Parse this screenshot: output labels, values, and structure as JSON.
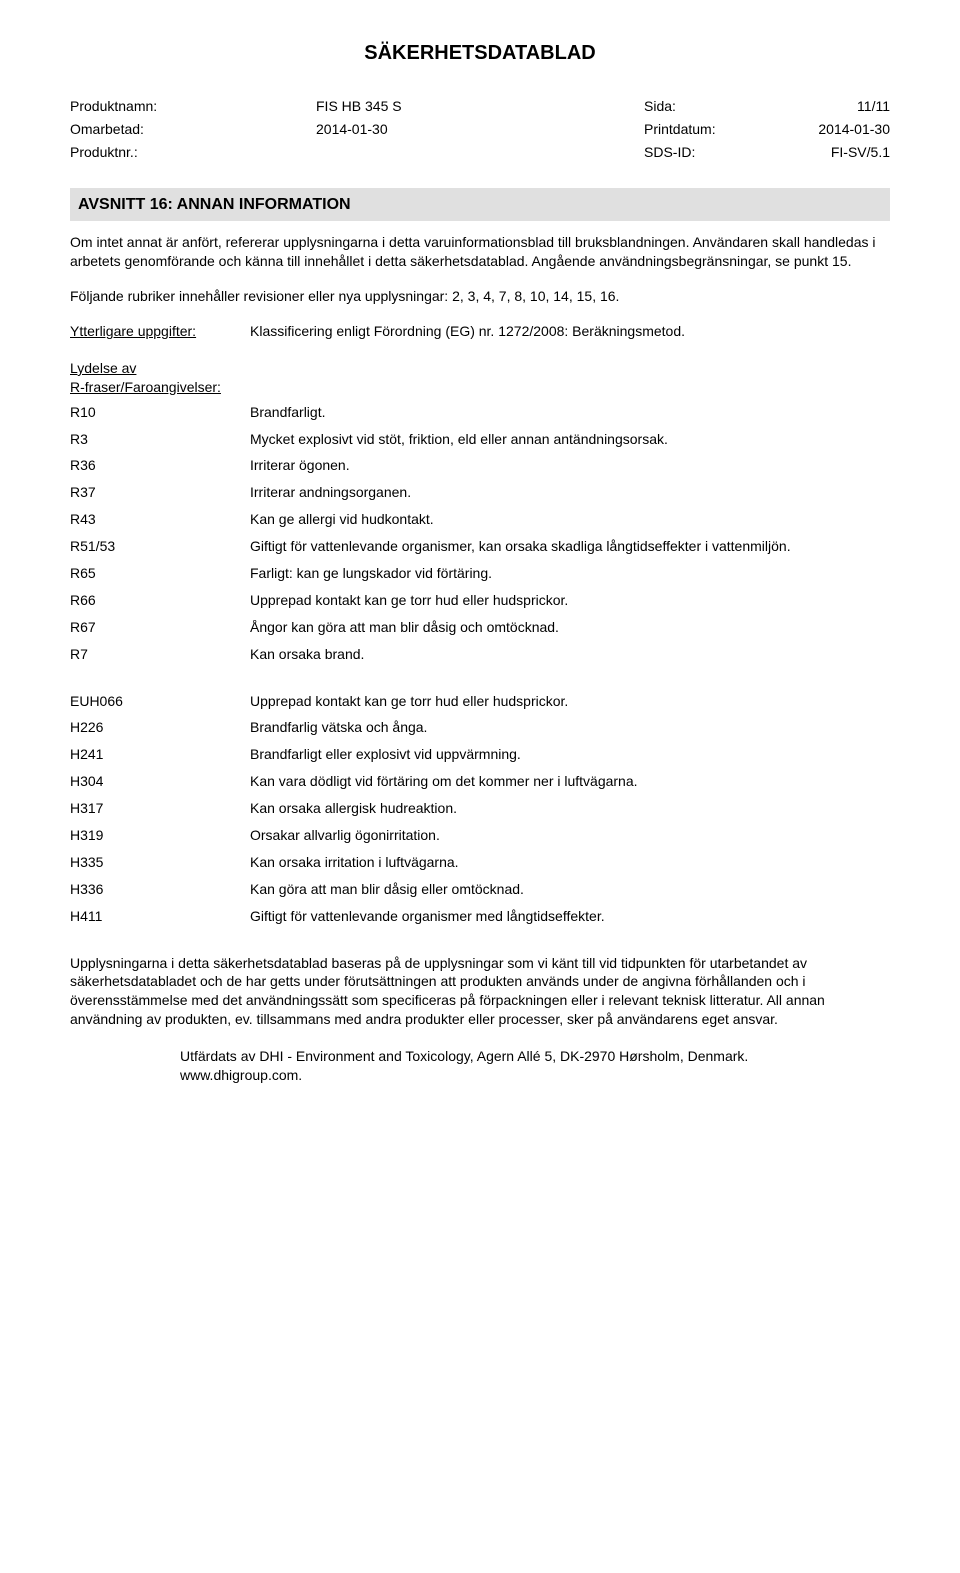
{
  "doc_title": "SÄKERHETSDATABLAD",
  "meta": {
    "product_name_label": "Produktnamn:",
    "product_name_value": "FIS HB 345 S",
    "page_label": "Sida:",
    "page_value": "11/11",
    "revised_label": "Omarbetad:",
    "revised_value": "2014-01-30",
    "printdate_label": "Printdatum:",
    "printdate_value": "2014-01-30",
    "productnr_label": "Produktnr.:",
    "productnr_value": "",
    "sdsid_label": "SDS-ID:",
    "sdsid_value": "FI-SV/5.1"
  },
  "section16": {
    "header": "AVSNITT 16: ANNAN INFORMATION",
    "intro": "Om intet annat är anfört, refererar upplysningarna i detta varuinformationsblad till bruksblandningen. Användaren skall handledas i arbetets genomförande och känna till innehållet i detta säkerhetsdatablad. Angående användningsbegränsningar, se punkt 15.",
    "revisions": "Följande rubriker innehåller revisioner eller nya upplysningar: 2, 3, 4, 7, 8,  10, 14, 15, 16.",
    "additional_label": "Ytterligare uppgifter:",
    "additional_value": "Klassificering enligt Förordning (EG) nr. 1272/2008: Beräkningsmetod.",
    "r_heading_line1": "Lydelse av",
    "r_heading_line2": "R-fraser/Faroangivelser:",
    "r_phrases": [
      {
        "code": "R10",
        "text": "Brandfarligt."
      },
      {
        "code": "R3",
        "text": "Mycket explosivt vid stöt, friktion, eld eller annan antändningsorsak."
      },
      {
        "code": "R36",
        "text": "Irriterar ögonen."
      },
      {
        "code": "R37",
        "text": "Irriterar andningsorganen."
      },
      {
        "code": "R43",
        "text": "Kan ge allergi vid hudkontakt."
      },
      {
        "code": "R51/53",
        "text": "Giftigt för vattenlevande organismer, kan orsaka skadliga långtidseffekter i vattenmiljön."
      },
      {
        "code": "R65",
        "text": "Farligt: kan ge lungskador vid förtäring."
      },
      {
        "code": "R66",
        "text": "Upprepad kontakt kan ge torr hud eller hudsprickor."
      },
      {
        "code": "R67",
        "text": "Ångor kan göra att man blir dåsig och omtöcknad."
      },
      {
        "code": "R7",
        "text": "Kan orsaka brand."
      }
    ],
    "h_phrases": [
      {
        "code": "EUH066",
        "text": "Upprepad kontakt kan ge torr hud eller hudsprickor."
      },
      {
        "code": "H226",
        "text": "Brandfarlig vätska och ånga."
      },
      {
        "code": "H241",
        "text": "Brandfarligt eller explosivt vid uppvärmning."
      },
      {
        "code": "H304",
        "text": "Kan vara dödligt vid förtäring om det kommer ner i luftvägarna."
      },
      {
        "code": "H317",
        "text": "Kan orsaka allergisk hudreaktion."
      },
      {
        "code": "H319",
        "text": "Orsakar allvarlig ögonirritation."
      },
      {
        "code": "H335",
        "text": "Kan orsaka irritation i luftvägarna."
      },
      {
        "code": "H336",
        "text": "Kan göra att man blir dåsig eller omtöcknad."
      },
      {
        "code": "H411",
        "text": "Giftigt för vattenlevande organismer med långtidseffekter."
      }
    ],
    "disclaimer": "Upplysningarna i detta säkerhetsdatablad  baseras på de upplysningar som vi känt till vid tidpunkten för utarbetandet av säkerhetsdatabladet och de har getts under förutsättningen att produkten används under de angivna förhållanden och i överensstämmelse med det användningssätt som specificeras på förpackningen eller i relevant teknisk litteratur. All annan användning av produkten, ev. tillsammans med andra produkter eller processer, sker på användarens eget ansvar.",
    "issuer": "Utfärdats av DHI - Environment and Toxicology, Agern Allé 5, DK-2970 Hørsholm, Denmark.",
    "issuer_url": "www.dhigroup.com."
  }
}
